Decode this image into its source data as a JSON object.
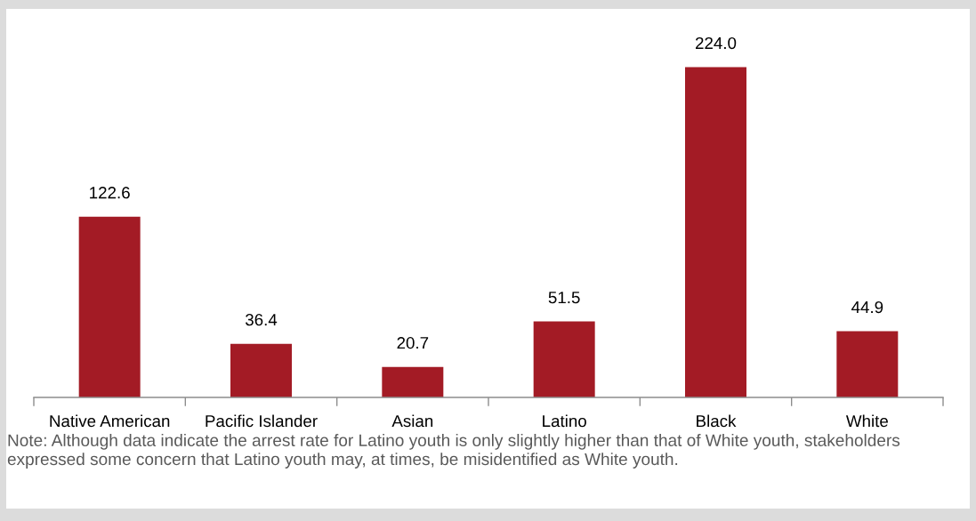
{
  "chart_data": {
    "type": "bar",
    "categories": [
      "Native American",
      "Pacific Islander",
      "Asian",
      "Latino",
      "Black",
      "White"
    ],
    "values": [
      122.6,
      36.4,
      20.7,
      51.5,
      224.0,
      44.9
    ],
    "value_labels": [
      "122.6",
      "36.4",
      "20.7",
      "51.5",
      "224.0",
      "44.9"
    ],
    "color": "#a31b25",
    "tick_labels": "x",
    "annotations": [
      "Note: Although data indicate the arrest rate for Latino youth is only slightly higher than that of White youth, stakeholders expressed some concern that Latino youth may, at times, be misidentified as White youth."
    ]
  }
}
